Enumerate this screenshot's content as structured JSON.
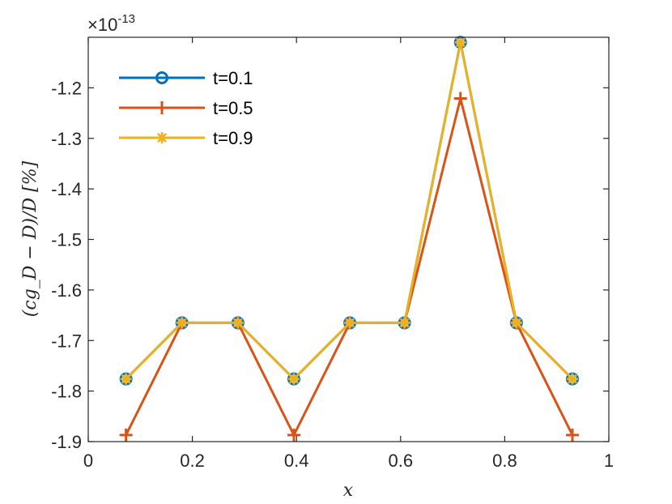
{
  "chart_data": {
    "type": "line",
    "xlabel": "x",
    "ylabel": "(cg_D − D)/D [%]",
    "y_multiplier": "×10",
    "y_exponent": "-13",
    "xlim": [
      0,
      1
    ],
    "ylim": [
      -1.9,
      -1.1
    ],
    "xticks": [
      0,
      0.2,
      0.4,
      0.6,
      0.8,
      1
    ],
    "xtick_labels": [
      "0",
      "0.2",
      "0.4",
      "0.6",
      "0.8",
      "1"
    ],
    "yticks": [
      -1.9,
      -1.8,
      -1.7,
      -1.6,
      -1.5,
      -1.4,
      -1.3,
      -1.2
    ],
    "ytick_labels": [
      "-1.9",
      "-1.8",
      "-1.7",
      "-1.6",
      "-1.5",
      "-1.4",
      "-1.3",
      "-1.2"
    ],
    "grid": false,
    "legend_position": "top-left",
    "x": [
      0.0725,
      0.18,
      0.2875,
      0.395,
      0.5025,
      0.6075,
      0.715,
      0.8225,
      0.93
    ],
    "series": [
      {
        "name": "t=0.1",
        "color": "#0072BD",
        "marker": "circle",
        "values": [
          -1.776,
          -1.665,
          -1.665,
          -1.776,
          -1.665,
          -1.665,
          -1.11,
          -1.665,
          -1.776
        ]
      },
      {
        "name": "t=0.5",
        "color": "#D95319",
        "marker": "plus",
        "values": [
          -1.887,
          -1.665,
          -1.665,
          -1.887,
          -1.665,
          -1.665,
          -1.221,
          -1.665,
          -1.887
        ]
      },
      {
        "name": "t=0.9",
        "color": "#EDB120",
        "marker": "asterisk",
        "values": [
          -1.776,
          -1.665,
          -1.665,
          -1.776,
          -1.665,
          -1.665,
          -1.11,
          -1.665,
          -1.776
        ]
      }
    ]
  }
}
